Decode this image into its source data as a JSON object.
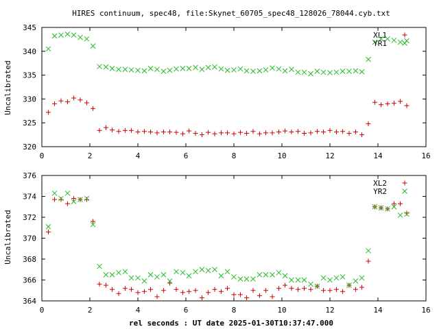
{
  "title": "HIRES continuum, spec48, file:Skynet_60705_spec48_128026_78044.cyb.txt",
  "xlabel": "rel seconds : UT date 2025-01-30T10:37:47.000",
  "colors": {
    "red": "#cc0000",
    "green": "#22bb22"
  },
  "chart_data": [
    {
      "type": "scatter",
      "ylabel": "Uncalibrated",
      "xlim": [
        0,
        16
      ],
      "ylim": [
        320,
        345
      ],
      "x_ticks": [
        0,
        2,
        4,
        6,
        8,
        10,
        12,
        14,
        16
      ],
      "y_ticks": [
        320,
        325,
        330,
        335,
        340,
        345
      ],
      "legend_position": "top-right",
      "x": [
        0.27,
        0.53,
        0.8,
        1.07,
        1.33,
        1.6,
        1.87,
        2.13,
        2.4,
        2.67,
        2.93,
        3.2,
        3.47,
        3.73,
        4.0,
        4.27,
        4.53,
        4.8,
        5.07,
        5.33,
        5.6,
        5.87,
        6.13,
        6.4,
        6.67,
        6.93,
        7.2,
        7.47,
        7.73,
        8.0,
        8.27,
        8.53,
        8.8,
        9.07,
        9.33,
        9.6,
        9.87,
        10.13,
        10.4,
        10.67,
        10.93,
        11.2,
        11.47,
        11.73,
        12.0,
        12.27,
        12.53,
        12.8,
        13.07,
        13.33,
        13.6,
        13.87,
        14.13,
        14.4,
        14.67,
        14.93,
        15.2
      ],
      "series": [
        {
          "name": "XL1",
          "marker": "+",
          "color": "#cc0000",
          "values": [
            327.2,
            329.0,
            329.6,
            329.4,
            330.2,
            329.8,
            329.2,
            328.0,
            323.4,
            324.0,
            323.5,
            323.2,
            323.4,
            323.4,
            323.1,
            323.2,
            323.1,
            322.9,
            323.1,
            323.1,
            323.0,
            322.7,
            323.3,
            322.8,
            322.5,
            323.0,
            322.7,
            322.9,
            322.9,
            322.7,
            323.0,
            322.8,
            323.2,
            322.7,
            322.9,
            322.9,
            323.1,
            323.3,
            323.1,
            323.2,
            322.8,
            322.9,
            323.2,
            323.1,
            323.4,
            323.1,
            323.2,
            322.8,
            323.1,
            322.5,
            324.8,
            329.3,
            328.8,
            329.0,
            329.1,
            329.5,
            328.6
          ]
        },
        {
          "name": "YR1",
          "marker": "x",
          "color": "#22bb22",
          "values": [
            340.5,
            343.2,
            343.4,
            343.6,
            343.4,
            342.9,
            342.6,
            341.1,
            336.8,
            336.7,
            336.4,
            336.2,
            336.2,
            336.1,
            336.0,
            335.9,
            336.4,
            336.2,
            335.8,
            336.0,
            336.3,
            336.4,
            336.4,
            336.6,
            336.2,
            336.6,
            336.7,
            336.3,
            336.0,
            336.1,
            336.3,
            335.9,
            335.8,
            335.9,
            336.1,
            336.5,
            336.3,
            335.9,
            336.2,
            335.6,
            335.6,
            335.3,
            335.8,
            335.6,
            335.5,
            335.6,
            335.8,
            335.8,
            335.9,
            335.7,
            338.3,
            341.9,
            342.6,
            342.6,
            342.3,
            341.9,
            342.2
          ]
        }
      ]
    },
    {
      "type": "scatter",
      "ylabel": "Uncalibrated",
      "xlim": [
        0,
        16
      ],
      "ylim": [
        364,
        376
      ],
      "x_ticks": [
        0,
        2,
        4,
        6,
        8,
        10,
        12,
        14,
        16
      ],
      "y_ticks": [
        364,
        366,
        368,
        370,
        372,
        374,
        376
      ],
      "legend_position": "top-right",
      "x": [
        0.27,
        0.53,
        0.8,
        1.07,
        1.33,
        1.6,
        1.87,
        2.13,
        2.4,
        2.67,
        2.93,
        3.2,
        3.47,
        3.73,
        4.0,
        4.27,
        4.53,
        4.8,
        5.07,
        5.33,
        5.6,
        5.87,
        6.13,
        6.4,
        6.67,
        6.93,
        7.2,
        7.47,
        7.73,
        8.0,
        8.27,
        8.53,
        8.8,
        9.07,
        9.33,
        9.6,
        9.87,
        10.13,
        10.4,
        10.67,
        10.93,
        11.2,
        11.47,
        11.73,
        12.0,
        12.27,
        12.53,
        12.8,
        13.07,
        13.33,
        13.6,
        13.87,
        14.13,
        14.4,
        14.67,
        14.93,
        15.2
      ],
      "series": [
        {
          "name": "XL2",
          "marker": "+",
          "color": "#cc0000",
          "values": [
            370.6,
            373.7,
            373.7,
            373.3,
            373.8,
            373.7,
            373.7,
            371.6,
            365.6,
            365.5,
            365.1,
            364.7,
            365.2,
            365.1,
            364.8,
            364.9,
            365.1,
            364.4,
            365.0,
            365.7,
            365.1,
            364.8,
            364.9,
            365.0,
            364.3,
            364.8,
            365.1,
            364.9,
            365.2,
            364.6,
            364.6,
            364.3,
            365.0,
            364.5,
            365.0,
            364.4,
            365.2,
            365.5,
            365.2,
            365.1,
            365.2,
            365.1,
            365.4,
            365.0,
            365.0,
            365.1,
            364.9,
            365.5,
            365.1,
            365.3,
            367.8,
            373.0,
            372.9,
            372.8,
            373.3,
            373.3,
            372.4
          ]
        },
        {
          "name": "YR2",
          "marker": "x",
          "color": "#22bb22",
          "values": [
            371.1,
            374.3,
            373.8,
            374.3,
            373.5,
            373.7,
            373.8,
            371.3,
            367.3,
            366.5,
            366.5,
            366.7,
            366.8,
            366.2,
            366.2,
            365.9,
            366.5,
            366.3,
            366.5,
            365.9,
            366.8,
            366.7,
            366.4,
            366.8,
            367.0,
            366.9,
            367.0,
            366.4,
            366.8,
            366.3,
            366.1,
            366.1,
            366.1,
            366.5,
            366.5,
            366.5,
            366.7,
            366.4,
            366.0,
            366.0,
            366.0,
            365.6,
            365.4,
            366.2,
            366.0,
            366.2,
            366.3,
            365.5,
            365.9,
            366.2,
            368.8,
            373.0,
            372.9,
            372.8,
            373.0,
            372.2,
            372.3
          ]
        }
      ]
    }
  ]
}
